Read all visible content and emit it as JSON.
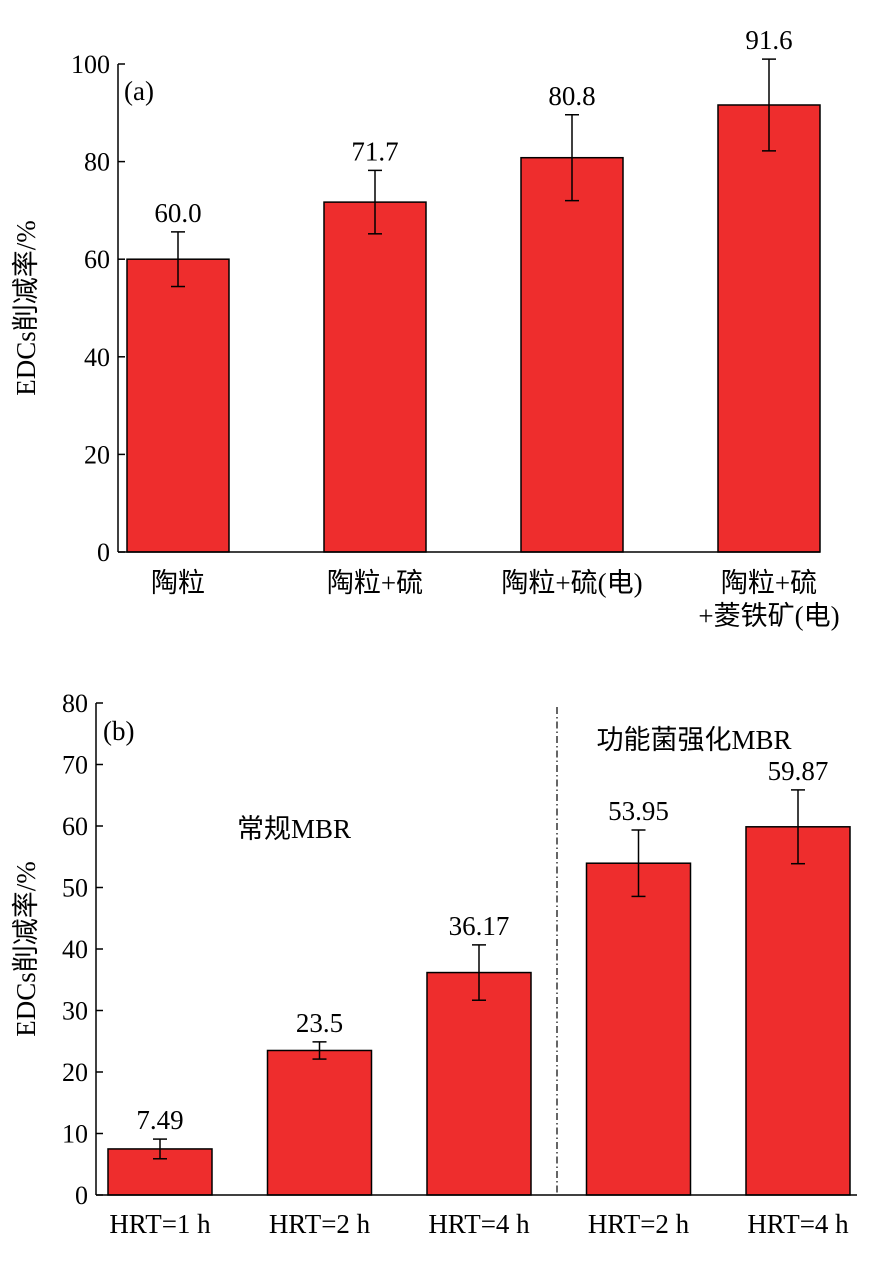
{
  "chart_data": [
    {
      "type": "bar",
      "panel_label": "(a)",
      "ylabel": "EDCs削减率/%",
      "ylim": [
        0,
        100
      ],
      "yticks": [
        0,
        20,
        40,
        60,
        80,
        100
      ],
      "categories": [
        [
          "陶粒"
        ],
        [
          "陶粒+硫"
        ],
        [
          "陶粒+硫(电)"
        ],
        [
          "陶粒+硫",
          "+菱铁矿(电)"
        ]
      ],
      "values": [
        60.0,
        71.7,
        80.8,
        91.6
      ],
      "value_labels": [
        "60.0",
        "71.7",
        "80.8",
        "91.6"
      ],
      "errors": [
        5.6,
        6.5,
        8.8,
        9.4
      ],
      "bar_color": "#ee2d2d"
    },
    {
      "type": "bar",
      "panel_label": "(b)",
      "ylabel": "EDCs削减率/%",
      "ylim": [
        0,
        80
      ],
      "yticks": [
        0,
        10,
        20,
        30,
        40,
        50,
        60,
        70,
        80
      ],
      "categories": [
        [
          "HRT=1 h"
        ],
        [
          "HRT=2 h"
        ],
        [
          "HRT=4 h"
        ],
        [
          "HRT=2 h"
        ],
        [
          "HRT=4 h"
        ]
      ],
      "values": [
        7.49,
        23.5,
        36.17,
        53.95,
        59.87
      ],
      "value_labels": [
        "7.49",
        "23.5",
        "36.17",
        "53.95",
        "59.87"
      ],
      "errors": [
        1.6,
        1.4,
        4.5,
        5.4,
        6.0
      ],
      "groups": [
        {
          "label": "常规MBR"
        },
        {
          "label": "功能菌强化MBR"
        }
      ],
      "bar_color": "#ee2d2d"
    }
  ]
}
